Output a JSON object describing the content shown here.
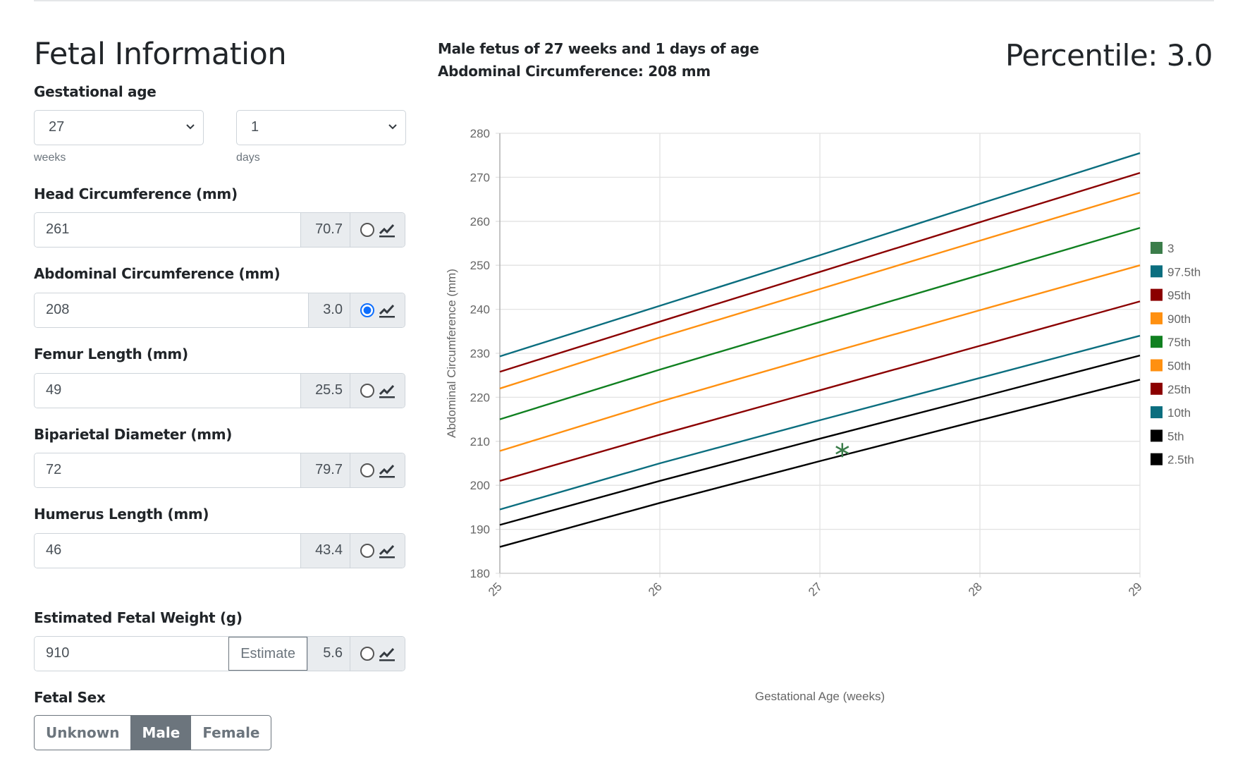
{
  "title": "Fetal Information",
  "gestational_age": {
    "label": "Gestational age",
    "weeks": "27",
    "days": "1",
    "weeks_label": "weeks",
    "days_label": "days"
  },
  "measurements": [
    {
      "label": "Head Circumference (mm)",
      "value": "261",
      "percentile": "70.7",
      "selected": false
    },
    {
      "label": "Abdominal Circumference (mm)",
      "value": "208",
      "percentile": "3.0",
      "selected": true
    },
    {
      "label": "Femur Length (mm)",
      "value": "49",
      "percentile": "25.5",
      "selected": false
    },
    {
      "label": "Biparietal Diameter (mm)",
      "value": "72",
      "percentile": "79.7",
      "selected": false
    },
    {
      "label": "Humerus Length (mm)",
      "value": "46",
      "percentile": "43.4",
      "selected": false
    }
  ],
  "efw": {
    "label": "Estimated Fetal Weight (g)",
    "value": "910",
    "estimate_label": "Estimate",
    "percentile": "5.6"
  },
  "sex": {
    "label": "Fetal Sex",
    "options": [
      "Unknown",
      "Male",
      "Female"
    ],
    "selected": "Male"
  },
  "header": {
    "line1": "Male fetus of 27 weeks and 1 days of age",
    "line2": "Abdominal Circumference: 208 mm",
    "percentile": "Percentile: 3.0"
  },
  "chart_data": {
    "type": "line",
    "xlabel": "Gestational Age (weeks)",
    "ylabel": "Abdominal Circumference (mm)",
    "xlim": [
      25,
      29
    ],
    "ylim": [
      180,
      280
    ],
    "x_ticks": [
      "25",
      "26",
      "27",
      "28",
      "29"
    ],
    "y_ticks": [
      "180",
      "190",
      "200",
      "210",
      "220",
      "230",
      "240",
      "250",
      "260",
      "270",
      "280"
    ],
    "x": [
      25,
      26,
      27,
      28,
      29
    ],
    "series": [
      {
        "name": "97.5th",
        "color": "#0b6e7f",
        "values": [
          229.3,
          240.8,
          252.3,
          264,
          275.5
        ]
      },
      {
        "name": "95th",
        "color": "#8b0000",
        "values": [
          225.8,
          237.2,
          248.5,
          259.8,
          271
        ]
      },
      {
        "name": "90th",
        "color": "#ff9010",
        "values": [
          222,
          233.6,
          244.6,
          255.6,
          266.5
        ]
      },
      {
        "name": "75th",
        "color": "#108020",
        "values": [
          215,
          226.3,
          237.1,
          247.8,
          258.5
        ]
      },
      {
        "name": "50th",
        "color": "#ff9010",
        "values": [
          207.8,
          219,
          229.5,
          239.8,
          250
        ]
      },
      {
        "name": "25th",
        "color": "#8b0000",
        "values": [
          201,
          211.5,
          221.6,
          231.7,
          241.8
        ]
      },
      {
        "name": "10th",
        "color": "#0b6e7f",
        "values": [
          194.5,
          205,
          214.8,
          224.4,
          234
        ]
      },
      {
        "name": "5th",
        "color": "#000000",
        "values": [
          191,
          201,
          210.6,
          220,
          229.5
        ]
      },
      {
        "name": "2.5th",
        "color": "#000000",
        "values": [
          186,
          196,
          205.5,
          214.8,
          224
        ]
      }
    ],
    "point": {
      "name": "3",
      "color": "#3b7d4a",
      "x": 27.14,
      "y": 208
    },
    "legend": [
      "3",
      "97.5th",
      "95th",
      "90th",
      "75th",
      "50th",
      "25th",
      "10th",
      "5th",
      "2.5th"
    ],
    "legend_position": "right"
  }
}
